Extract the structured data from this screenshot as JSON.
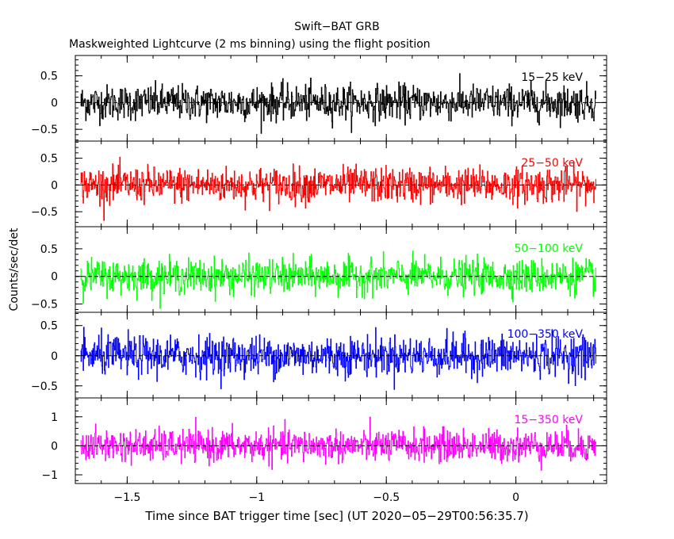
{
  "figure": {
    "title": "Swift−BAT GRB",
    "subtitle": "Maskweighted Lightcurve (2 ms binning) using the flight position"
  },
  "chart_data": {
    "type": "line",
    "xlabel": "Time since BAT trigger time [sec] (UT 2020−05−29T00:56:35.7)",
    "ylabel": "Counts/sec/det",
    "xlim": [
      -1.7,
      0.35
    ],
    "x_data_range": [
      -1.68,
      0.31
    ],
    "x_ticks": [
      -1.5,
      -1,
      -0.5,
      0
    ],
    "x_tick_labels": [
      "−1.5",
      "−1",
      "−0.5",
      "0"
    ],
    "grid": false,
    "panels": [
      {
        "band": "15−25 keV",
        "color": "#000000",
        "ylim": [
          -0.72,
          0.88
        ],
        "y_ticks": [
          -0.5,
          0,
          0.5
        ],
        "y_tick_labels": [
          "−0.5",
          "0",
          "0.5"
        ],
        "noise_amplitude": 0.3,
        "baseline": 0.0
      },
      {
        "band": "25−50 keV",
        "color": "#ff0000",
        "ylim": [
          -0.78,
          0.82
        ],
        "y_ticks": [
          -0.5,
          0,
          0.5
        ],
        "y_tick_labels": [
          "−0.5",
          "0",
          "0.5"
        ],
        "noise_amplitude": 0.3,
        "baseline": 0.0
      },
      {
        "band": "50−100 keV",
        "color": "#00ff00",
        "ylim": [
          -0.65,
          0.9
        ],
        "y_ticks": [
          -0.5,
          0,
          0.5
        ],
        "y_tick_labels": [
          "−0.5",
          "0",
          "0.5"
        ],
        "noise_amplitude": 0.28,
        "baseline": 0.0
      },
      {
        "band": "100−350 keV",
        "color": "#0000ff",
        "ylim": [
          -0.7,
          0.72
        ],
        "y_ticks": [
          -0.5,
          0,
          0.5
        ],
        "y_tick_labels": [
          "−0.5",
          "0",
          "0.5"
        ],
        "noise_amplitude": 0.3,
        "baseline": 0.0
      },
      {
        "band": "15−350 keV",
        "color": "#ff00ff",
        "ylim": [
          -1.3,
          1.65
        ],
        "y_ticks": [
          -1,
          0,
          1
        ],
        "y_tick_labels": [
          "−1",
          "0",
          "1"
        ],
        "noise_amplitude": 0.5,
        "baseline": 0.0
      }
    ]
  }
}
